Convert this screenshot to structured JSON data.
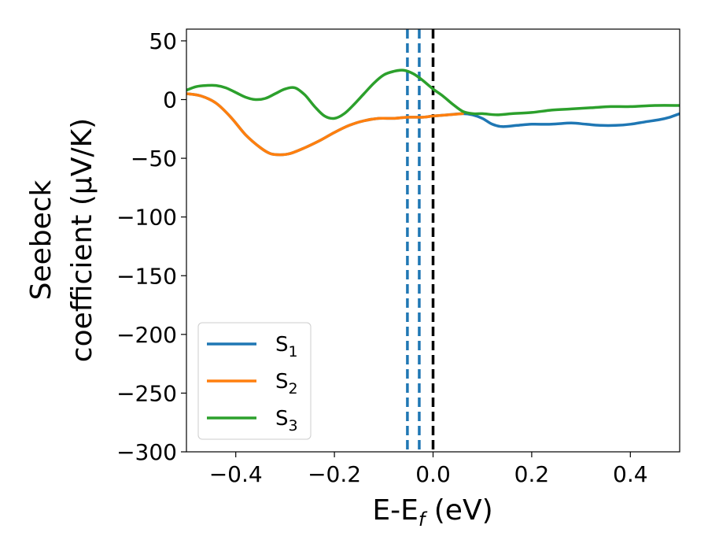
{
  "chart_data": {
    "type": "line",
    "title": "",
    "xlabel": "E-E",
    "xlabel_sub": "f",
    "xlabel_unit": "(eV)",
    "ylabel_line1": "Seebeck",
    "ylabel_line2": "coefficient  (μV/K)",
    "xlim": [
      -0.5,
      0.5
    ],
    "ylim": [
      -300,
      60
    ],
    "grid": false,
    "legend_position": "lower-left",
    "x_ticks": [
      {
        "value": -0.4,
        "label": "−0.4"
      },
      {
        "value": -0.2,
        "label": "−0.2"
      },
      {
        "value": 0.0,
        "label": "0.0"
      },
      {
        "value": 0.2,
        "label": "0.2"
      },
      {
        "value": 0.4,
        "label": "0.4"
      }
    ],
    "y_ticks": [
      {
        "value": 50,
        "label": "50"
      },
      {
        "value": 0,
        "label": "0"
      },
      {
        "value": -50,
        "label": "−50"
      },
      {
        "value": -100,
        "label": "−100"
      },
      {
        "value": -150,
        "label": "−150"
      },
      {
        "value": -200,
        "label": "−200"
      },
      {
        "value": -250,
        "label": "−250"
      },
      {
        "value": -300,
        "label": "−300"
      }
    ],
    "vlines": [
      {
        "x": -0.052,
        "color": "#1f77b4",
        "style": "dashed"
      },
      {
        "x": -0.028,
        "color": "#1f77b4",
        "style": "dashed"
      },
      {
        "x": 0.0,
        "color": "#000000",
        "style": "dashed"
      }
    ],
    "series": [
      {
        "name": "S",
        "sub": "1",
        "color": "#1f77b4",
        "x": [
          -0.5,
          -0.47,
          -0.44,
          -0.41,
          -0.38,
          -0.35,
          -0.33,
          -0.31,
          -0.29,
          -0.26,
          -0.23,
          -0.2,
          -0.17,
          -0.14,
          -0.11,
          -0.08,
          -0.05,
          -0.02,
          0.0,
          0.03,
          0.06,
          0.08,
          0.1,
          0.12,
          0.14,
          0.17,
          0.2,
          0.24,
          0.28,
          0.31,
          0.34,
          0.37,
          0.4,
          0.43,
          0.46,
          0.48,
          0.5
        ],
        "y": [
          5,
          3,
          -3,
          -15,
          -30,
          -41,
          -46,
          -47,
          -46,
          -41,
          -35,
          -28,
          -22,
          -18,
          -16,
          -16,
          -15,
          -15,
          -14,
          -13,
          -12,
          -13,
          -16,
          -21,
          -23,
          -22,
          -21,
          -21,
          -20,
          -21,
          -22,
          -22,
          -21,
          -19,
          -17,
          -15,
          -12
        ]
      },
      {
        "name": "S",
        "sub": "2",
        "color": "#ff7f0e",
        "x": [
          -0.5,
          -0.47,
          -0.44,
          -0.41,
          -0.38,
          -0.35,
          -0.33,
          -0.31,
          -0.29,
          -0.26,
          -0.23,
          -0.2,
          -0.17,
          -0.14,
          -0.11,
          -0.08,
          -0.05,
          -0.02,
          0.0,
          0.03,
          0.06
        ],
        "y": [
          5,
          3,
          -3,
          -15,
          -30,
          -41,
          -46,
          -47,
          -46,
          -41,
          -35,
          -28,
          -22,
          -18,
          -16,
          -16,
          -15,
          -15,
          -14,
          -13,
          -12
        ]
      },
      {
        "name": "S",
        "sub": "3",
        "color": "#2ca02c",
        "x": [
          -0.5,
          -0.48,
          -0.46,
          -0.44,
          -0.42,
          -0.4,
          -0.38,
          -0.36,
          -0.34,
          -0.32,
          -0.3,
          -0.28,
          -0.26,
          -0.24,
          -0.22,
          -0.2,
          -0.18,
          -0.16,
          -0.14,
          -0.12,
          -0.1,
          -0.08,
          -0.06,
          -0.04,
          -0.02,
          0.0,
          0.02,
          0.04,
          0.06,
          0.08,
          0.1,
          0.13,
          0.16,
          0.2,
          0.24,
          0.28,
          0.32,
          0.36,
          0.4,
          0.45,
          0.5
        ],
        "y": [
          8,
          11,
          12,
          12,
          10,
          6,
          2,
          0,
          1,
          5,
          9,
          10,
          4,
          -6,
          -14,
          -16,
          -12,
          -4,
          5,
          14,
          21,
          24,
          25,
          22,
          16,
          9,
          3,
          -4,
          -10,
          -12,
          -12,
          -13,
          -12,
          -11,
          -9,
          -8,
          -7,
          -6,
          -6,
          -5,
          -5
        ]
      }
    ]
  }
}
